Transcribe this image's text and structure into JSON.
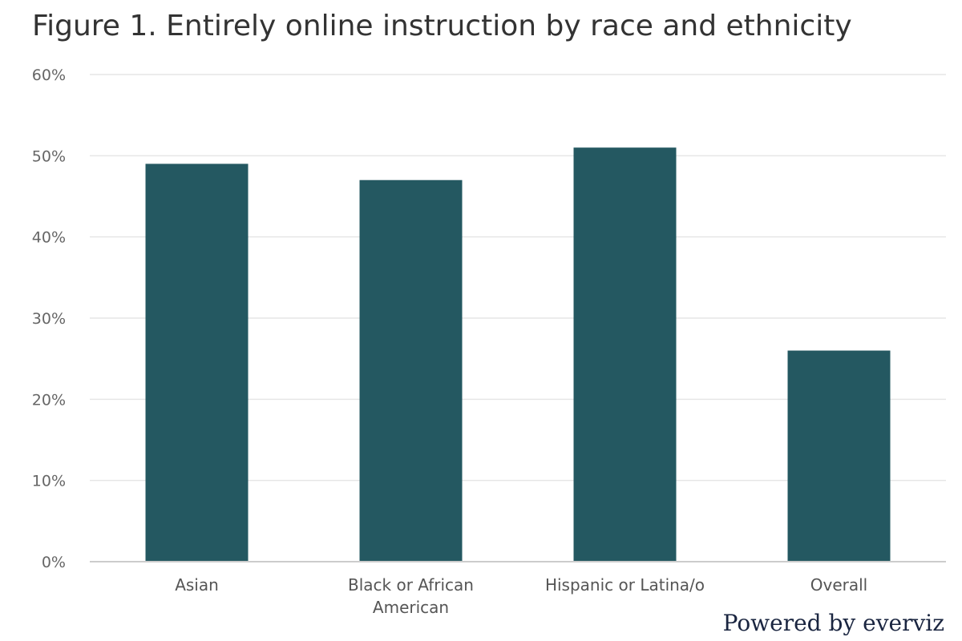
{
  "chart_data": {
    "type": "bar",
    "title": "Figure 1. Entirely online instruction by race and ethnicity",
    "categories": [
      "Asian",
      "Black or African American",
      "Hispanic or Latina/o",
      "Overall"
    ],
    "category_lines": [
      [
        "Asian"
      ],
      [
        "Black or African",
        "American"
      ],
      [
        "Hispanic or Latina/o"
      ],
      [
        "Overall"
      ]
    ],
    "values": [
      49,
      47,
      51,
      26
    ],
    "ylim": [
      0,
      60
    ],
    "yticks": [
      0,
      10,
      20,
      30,
      40,
      50,
      60
    ],
    "y_tick_suffix": "%",
    "xlabel": "",
    "ylabel": "",
    "grid": true,
    "legend": "none",
    "bar_color": "#245861",
    "grid_color": "#e6e6e6",
    "axis_color": "#cccccc"
  },
  "credits": "Powered by everviz"
}
